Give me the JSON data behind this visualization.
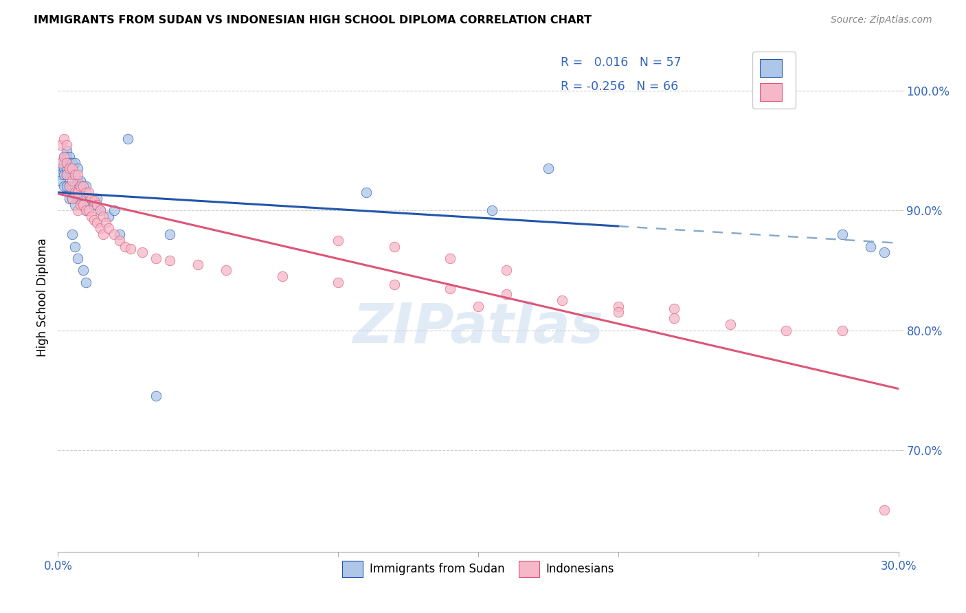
{
  "title": "IMMIGRANTS FROM SUDAN VS INDONESIAN HIGH SCHOOL DIPLOMA CORRELATION CHART",
  "source": "Source: ZipAtlas.com",
  "ylabel": "High School Diploma",
  "ytick_values": [
    0.7,
    0.8,
    0.9,
    1.0
  ],
  "xmin": 0.0,
  "xmax": 0.3,
  "ymin": 0.615,
  "ymax": 1.04,
  "blue_color": "#aec6e8",
  "pink_color": "#f5b8c8",
  "blue_line_color": "#2255aa",
  "pink_line_color": "#dd5577",
  "dashed_line_color": "#88aacc",
  "watermark_text": "ZIPatlas",
  "sudan_x": [
    0.001,
    0.001,
    0.001,
    0.002,
    0.002,
    0.002,
    0.002,
    0.002,
    0.003,
    0.003,
    0.003,
    0.003,
    0.003,
    0.003,
    0.004,
    0.004,
    0.004,
    0.004,
    0.004,
    0.005,
    0.005,
    0.005,
    0.005,
    0.006,
    0.006,
    0.006,
    0.006,
    0.007,
    0.007,
    0.007,
    0.008,
    0.008,
    0.009,
    0.009,
    0.01,
    0.01,
    0.012,
    0.013,
    0.014,
    0.015,
    0.018,
    0.02,
    0.022,
    0.025,
    0.035,
    0.04,
    0.11,
    0.155,
    0.175,
    0.28,
    0.29,
    0.295,
    0.005,
    0.006,
    0.007,
    0.009,
    0.01
  ],
  "sudan_y": [
    0.935,
    0.93,
    0.925,
    0.945,
    0.94,
    0.935,
    0.93,
    0.92,
    0.95,
    0.945,
    0.94,
    0.935,
    0.93,
    0.92,
    0.945,
    0.94,
    0.93,
    0.92,
    0.91,
    0.94,
    0.93,
    0.92,
    0.91,
    0.94,
    0.93,
    0.92,
    0.905,
    0.935,
    0.925,
    0.91,
    0.925,
    0.91,
    0.92,
    0.905,
    0.92,
    0.9,
    0.91,
    0.905,
    0.91,
    0.9,
    0.895,
    0.9,
    0.88,
    0.96,
    0.745,
    0.88,
    0.915,
    0.9,
    0.935,
    0.88,
    0.87,
    0.865,
    0.88,
    0.87,
    0.86,
    0.85,
    0.84
  ],
  "indonesia_x": [
    0.001,
    0.001,
    0.002,
    0.002,
    0.003,
    0.003,
    0.003,
    0.004,
    0.004,
    0.005,
    0.005,
    0.005,
    0.006,
    0.006,
    0.007,
    0.007,
    0.007,
    0.008,
    0.008,
    0.009,
    0.009,
    0.01,
    0.01,
    0.011,
    0.011,
    0.012,
    0.012,
    0.013,
    0.013,
    0.014,
    0.014,
    0.015,
    0.015,
    0.016,
    0.016,
    0.017,
    0.018,
    0.02,
    0.022,
    0.024,
    0.026,
    0.03,
    0.035,
    0.04,
    0.05,
    0.06,
    0.08,
    0.1,
    0.12,
    0.14,
    0.16,
    0.18,
    0.2,
    0.22,
    0.14,
    0.16,
    0.28,
    0.295,
    0.1,
    0.12,
    0.15,
    0.2,
    0.22,
    0.24,
    0.26
  ],
  "indonesia_y": [
    0.955,
    0.94,
    0.96,
    0.945,
    0.955,
    0.94,
    0.93,
    0.935,
    0.92,
    0.935,
    0.925,
    0.91,
    0.93,
    0.915,
    0.93,
    0.915,
    0.9,
    0.92,
    0.905,
    0.92,
    0.905,
    0.915,
    0.9,
    0.915,
    0.9,
    0.91,
    0.895,
    0.908,
    0.892,
    0.905,
    0.89,
    0.9,
    0.885,
    0.895,
    0.88,
    0.89,
    0.885,
    0.88,
    0.875,
    0.87,
    0.868,
    0.865,
    0.86,
    0.858,
    0.855,
    0.85,
    0.845,
    0.84,
    0.838,
    0.835,
    0.83,
    0.825,
    0.82,
    0.818,
    0.86,
    0.85,
    0.8,
    0.65,
    0.875,
    0.87,
    0.82,
    0.815,
    0.81,
    0.805,
    0.8
  ]
}
